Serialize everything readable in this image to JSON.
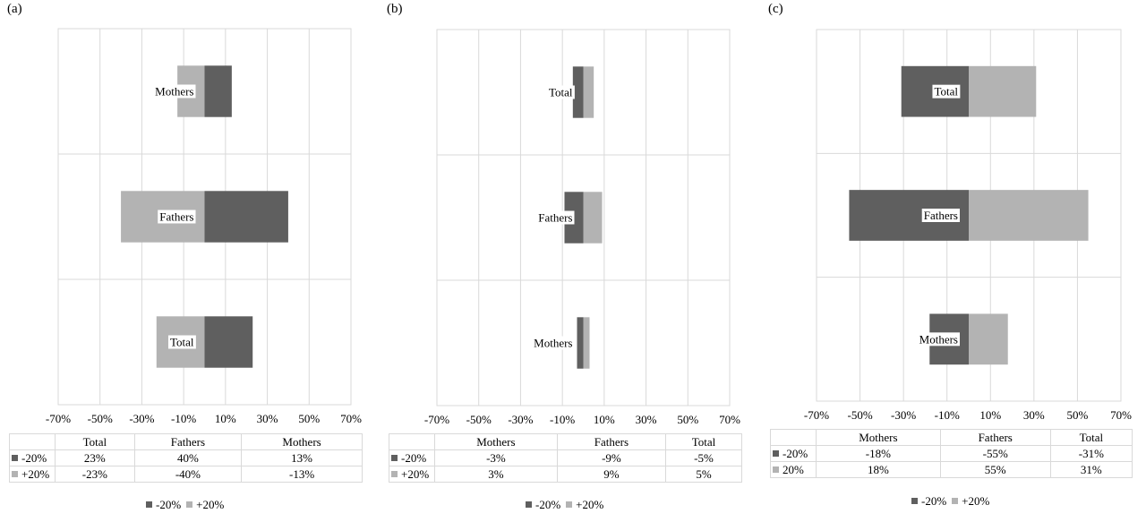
{
  "colors": {
    "minus20": "#5f5f5f",
    "plus20": "#b3b3b3",
    "grid": "#d9d9d9"
  },
  "chart_data": [
    {
      "type": "bar",
      "panel_label": "(a)",
      "orientation": "horizontal",
      "categories": [
        "Mothers",
        "Fathers",
        "Total"
      ],
      "series": [
        {
          "name": "-20%",
          "values": [
            13,
            40,
            23
          ]
        },
        {
          "name": "+20%",
          "values": [
            -13,
            -40,
            -23
          ]
        }
      ],
      "xlim": [
        -70,
        70
      ],
      "x_tick_labels": [
        "-70%",
        "-50%",
        "-30%",
        "-10%",
        "10%",
        "30%",
        "50%",
        "70%"
      ],
      "table": {
        "headers": [
          "Total",
          "Fathers",
          "Mothers"
        ],
        "rows": [
          {
            "key": "-20%",
            "cells": [
              "23%",
              "40%",
              "13%"
            ]
          },
          {
            "key": "+20%",
            "cells": [
              "-23%",
              "-40%",
              "-13%"
            ]
          }
        ]
      },
      "legend": [
        "-20%",
        "+20%"
      ]
    },
    {
      "type": "bar",
      "panel_label": "(b)",
      "orientation": "horizontal",
      "categories": [
        "Total",
        "Fathers",
        "Mothers"
      ],
      "series": [
        {
          "name": "-20%",
          "values": [
            -5,
            -9,
            -3
          ]
        },
        {
          "name": "+20%",
          "values": [
            5,
            9,
            3
          ]
        }
      ],
      "xlim": [
        -70,
        70
      ],
      "x_tick_labels": [
        "-70%",
        "-50%",
        "-30%",
        "-10%",
        "10%",
        "30%",
        "50%",
        "70%"
      ],
      "table": {
        "headers": [
          "Mothers",
          "Fathers",
          "Total"
        ],
        "rows": [
          {
            "key": "-20%",
            "cells": [
              "-3%",
              "-9%",
              "-5%"
            ]
          },
          {
            "key": "+20%",
            "cells": [
              "3%",
              "9%",
              "5%"
            ]
          }
        ]
      },
      "legend": [
        "-20%",
        "+20%"
      ]
    },
    {
      "type": "bar",
      "panel_label": "(c)",
      "orientation": "horizontal",
      "categories": [
        "Total",
        "Fathers",
        "Mothers"
      ],
      "series": [
        {
          "name": "-20%",
          "values": [
            -31,
            -55,
            -18
          ]
        },
        {
          "name": "+20%",
          "values": [
            31,
            55,
            18
          ]
        }
      ],
      "xlim": [
        -70,
        70
      ],
      "x_tick_labels": [
        "-70%",
        "-50%",
        "-30%",
        "-10%",
        "10%",
        "30%",
        "50%",
        "70%"
      ],
      "table": {
        "headers": [
          "Mothers",
          "Fathers",
          "Total"
        ],
        "rows": [
          {
            "key": "-20%",
            "cells": [
              "-18%",
              "-55%",
              "-31%"
            ]
          },
          {
            "key": "20%",
            "cells": [
              "18%",
              "55%",
              "31%"
            ]
          }
        ]
      },
      "legend": [
        "-20%",
        "+20%"
      ]
    }
  ]
}
